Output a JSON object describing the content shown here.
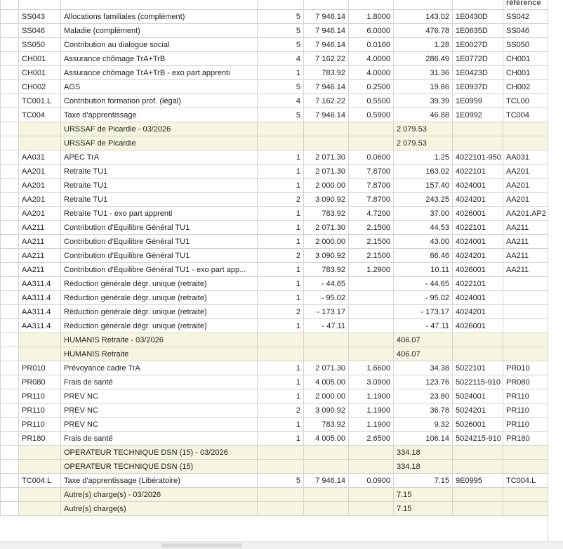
{
  "table": {
    "header": {
      "ref": "référence"
    },
    "rows": [
      {
        "code": "SS043",
        "label": "Allocations familiales (complément)",
        "count": "5",
        "base": "7 946.14",
        "rate": "1.8000",
        "amount": "143.02",
        "account": "1E0430D",
        "ref": "SS042"
      },
      {
        "code": "SS046",
        "label": "Maladie (complément)",
        "count": "5",
        "base": "7 946.14",
        "rate": "6.0000",
        "amount": "476.78",
        "account": "1E0635D",
        "ref": "SS046"
      },
      {
        "code": "SS050",
        "label": "Contribution au dialogue social",
        "count": "5",
        "base": "7 946.14",
        "rate": "0.0160",
        "amount": "1.28",
        "account": "1E0027D",
        "ref": "SS050"
      },
      {
        "code": "CH001",
        "label": "Assurance chômage TrA+TrB",
        "count": "4",
        "base": "7 162.22",
        "rate": "4.0000",
        "amount": "286.49",
        "account": "1E0772D",
        "ref": "CH001"
      },
      {
        "code": "CH001",
        "label": "Assurance chômage TrA+TrB - exo part apprenti",
        "count": "1",
        "base": "783.92",
        "rate": "4.0000",
        "amount": "31.36",
        "account": "1E0423D",
        "ref": "CH001"
      },
      {
        "code": "CH002",
        "label": "AGS",
        "count": "5",
        "base": "7 946.14",
        "rate": "0.2500",
        "amount": "19.86",
        "account": "1E0937D",
        "ref": "CH002"
      },
      {
        "code": "TC001.L",
        "label": "Contribution formation prof. (légal)",
        "count": "4",
        "base": "7 162.22",
        "rate": "0.5500",
        "amount": "39.39",
        "account": "1E0959",
        "ref": "TCL00"
      },
      {
        "code": "TC004",
        "label": "Taxe d'apprentissage",
        "count": "5",
        "base": "7 946.14",
        "rate": "0.5900",
        "amount": "46.88",
        "account": "1E0992",
        "ref": "TC004"
      },
      {
        "label": "URSSAF de Picardie - 03/2026",
        "amount": "2 079.53"
      },
      {
        "label": "URSSAF de Picardie",
        "amount": "2 079.53"
      },
      {
        "code": "AA031",
        "label": "APEC TrA",
        "count": "1",
        "base": "2 071.30",
        "rate": "0.0600",
        "amount": "1.25",
        "account": "4022101-950",
        "ref": "AA031"
      },
      {
        "code": "AA201",
        "label": "Retraite TU1",
        "count": "1",
        "base": "2 071.30",
        "rate": "7.8700",
        "amount": "163.02",
        "account": "4022101",
        "ref": "AA201"
      },
      {
        "code": "AA201",
        "label": "Retraite TU1",
        "count": "1",
        "base": "2 000.00",
        "rate": "7.8700",
        "amount": "157.40",
        "account": "4024001",
        "ref": "AA201"
      },
      {
        "code": "AA201",
        "label": "Retraite TU1",
        "count": "2",
        "base": "3 090.92",
        "rate": "7.8700",
        "amount": "243.25",
        "account": "4024201",
        "ref": "AA201"
      },
      {
        "code": "AA201",
        "label": "Retraite TU1 - exo part apprenti",
        "count": "1",
        "base": "783.92",
        "rate": "4.7200",
        "amount": "37.00",
        "account": "4026001",
        "ref": "AA201.AP2"
      },
      {
        "code": "AA211",
        "label": "Contribution d'Equilibre Général TU1",
        "count": "1",
        "base": "2 071.30",
        "rate": "2.1500",
        "amount": "44.53",
        "account": "4022101",
        "ref": "AA211"
      },
      {
        "code": "AA211",
        "label": "Contribution d'Equilibre Général TU1",
        "count": "1",
        "base": "2 000.00",
        "rate": "2.1500",
        "amount": "43.00",
        "account": "4024001",
        "ref": "AA211"
      },
      {
        "code": "AA211",
        "label": "Contribution d'Equilibre Général TU1",
        "count": "2",
        "base": "3 090.92",
        "rate": "2.1500",
        "amount": "66.46",
        "account": "4024201",
        "ref": "AA211"
      },
      {
        "code": "AA211",
        "label": "Contribution d'Equilibre Général TU1 - exo part app...",
        "count": "1",
        "base": "783.92",
        "rate": "1.2900",
        "amount": "10.11",
        "account": "4026001",
        "ref": "AA211"
      },
      {
        "code": "AA311.4",
        "label": "Réduction générale dégr. unique (retraite)",
        "count": "1",
        "base": "- 44.65",
        "amount": "- 44.65",
        "account": "4022101"
      },
      {
        "code": "AA311.4",
        "label": "Réduction générale dégr. unique (retraite)",
        "count": "1",
        "base": "- 95.02",
        "amount": "- 95.02",
        "account": "4024001"
      },
      {
        "code": "AA311.4",
        "label": "Réduction générale dégr. unique (retraite)",
        "count": "2",
        "base": "- 173.17",
        "amount": "- 173.17",
        "account": "4024201"
      },
      {
        "code": "AA311.4",
        "label": "Réduction générale dégr. unique (retraite)",
        "count": "1",
        "base": "- 47.11",
        "amount": "- 47.11",
        "account": "4026001"
      },
      {
        "label": "HUMANIS Retraite - 03/2026",
        "amount": "406.07"
      },
      {
        "label": "HUMANIS Retraite",
        "amount": "406.07"
      },
      {
        "code": "PR010",
        "label": "Prévoyance cadre TrA",
        "count": "1",
        "base": "2 071.30",
        "rate": "1.6600",
        "amount": "34.38",
        "account": "5022101",
        "ref": "PR010"
      },
      {
        "code": "PR080",
        "label": "Frais de santé",
        "count": "1",
        "base": "4 005.00",
        "rate": "3.0900",
        "amount": "123.76",
        "account": "5022115-910",
        "ref": "PR080"
      },
      {
        "code": "PR110",
        "label": "PREV NC",
        "count": "1",
        "base": "2 000.00",
        "rate": "1.1900",
        "amount": "23.80",
        "account": "5024001",
        "ref": "PR110"
      },
      {
        "code": "PR110",
        "label": "PREV NC",
        "count": "2",
        "base": "3 090.92",
        "rate": "1.1900",
        "amount": "36.78",
        "account": "5024201",
        "ref": "PR110"
      },
      {
        "code": "PR110",
        "label": "PREV NC",
        "count": "1",
        "base": "783.92",
        "rate": "1.1900",
        "amount": "9.32",
        "account": "5026001",
        "ref": "PR110"
      },
      {
        "code": "PR180",
        "label": "Frais de santé",
        "count": "1",
        "base": "4 005.00",
        "rate": "2.6500",
        "amount": "106.14",
        "account": "5024215-910",
        "ref": "PR180"
      },
      {
        "label": "OPERATEUR TECHNIQUE DSN (15) - 03/2026",
        "amount": "334.18"
      },
      {
        "label": "OPERATEUR TECHNIQUE DSN (15)",
        "amount": "334.18"
      },
      {
        "code": "TC004.L",
        "label": "Taxe d'apprentissage (Libératoire)",
        "count": "5",
        "base": "7 946.14",
        "rate": "0.0900",
        "amount": "7.15",
        "account": "9E0995",
        "ref": "TC004.L"
      },
      {
        "label": "Autre(s) charge(s) - 03/2026",
        "amount": "7.15"
      },
      {
        "label": "Autre(s) charge(s)",
        "amount": "7.15"
      }
    ]
  }
}
